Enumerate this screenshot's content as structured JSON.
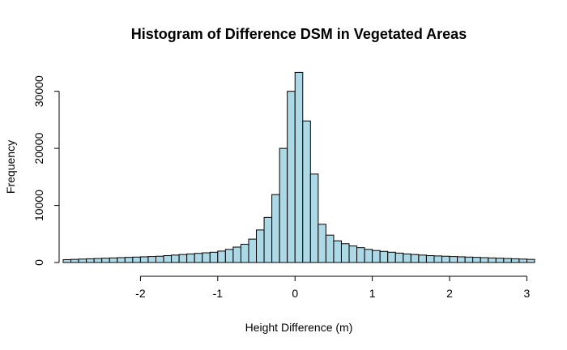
{
  "chart_data": {
    "type": "bar",
    "title": "Histogram of Difference DSM in Vegetated Areas",
    "xlabel": "Height Difference (m)",
    "ylabel": "Frequency",
    "bin_width": 0.1,
    "xlim": [
      -3.0,
      3.1
    ],
    "ylim": [
      0,
      33500
    ],
    "x_ticks": [
      -2,
      -1,
      0,
      1,
      2,
      3
    ],
    "y_ticks": [
      0,
      10000,
      20000,
      30000
    ],
    "bin_starts": [
      -3.0,
      -2.9,
      -2.8,
      -2.7,
      -2.6,
      -2.5,
      -2.4,
      -2.3,
      -2.2,
      -2.1,
      -2.0,
      -1.9,
      -1.8,
      -1.7,
      -1.6,
      -1.5,
      -1.4,
      -1.3,
      -1.2,
      -1.1,
      -1.0,
      -0.9,
      -0.8,
      -0.7,
      -0.6,
      -0.5,
      -0.4,
      -0.3,
      -0.2,
      -0.1,
      0.0,
      0.1,
      0.2,
      0.3,
      0.4,
      0.5,
      0.6,
      0.7,
      0.8,
      0.9,
      1.0,
      1.1,
      1.2,
      1.3,
      1.4,
      1.5,
      1.6,
      1.7,
      1.8,
      1.9,
      2.0,
      2.1,
      2.2,
      2.3,
      2.4,
      2.5,
      2.6,
      2.7,
      2.8,
      2.9,
      3.0
    ],
    "values": [
      500,
      550,
      600,
      650,
      700,
      750,
      800,
      850,
      900,
      950,
      1000,
      1050,
      1100,
      1200,
      1300,
      1400,
      1500,
      1600,
      1700,
      1800,
      2000,
      2300,
      2700,
      3200,
      4100,
      5700,
      7900,
      11900,
      20000,
      30000,
      33300,
      24800,
      15500,
      6700,
      4800,
      3800,
      3300,
      2900,
      2600,
      2300,
      2100,
      1950,
      1800,
      1650,
      1500,
      1400,
      1300,
      1200,
      1150,
      1100,
      1050,
      1000,
      950,
      900,
      850,
      800,
      750,
      700,
      650,
      600,
      550
    ]
  }
}
